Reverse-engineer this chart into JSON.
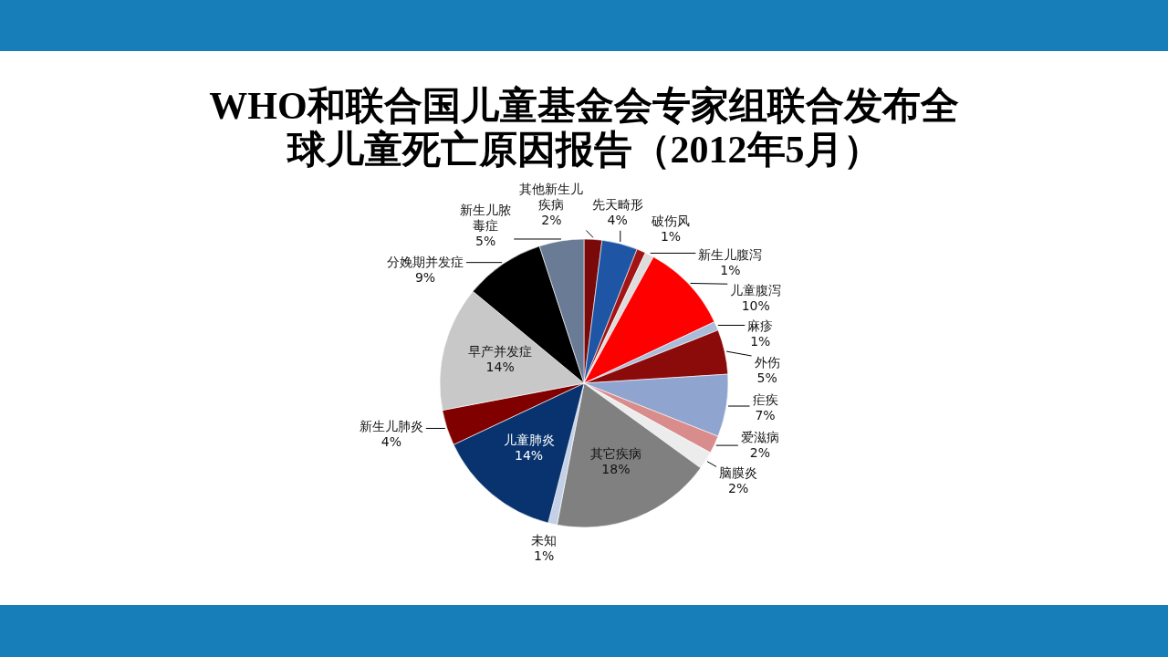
{
  "chart_data": {
    "type": "pie",
    "title": "WHO和联合国儿童基金会专家组联合发布全球儿童死亡原因报告（2012年5月）",
    "categories": [
      "其他新生儿疾病",
      "先天畸形",
      "破伤风",
      "新生儿腹泻",
      "儿童腹泻",
      "麻疹",
      "外伤",
      "疟疾",
      "爱滋病",
      "脑膜炎",
      "其它疾病",
      "未知",
      "儿童肺炎",
      "新生儿肺炎",
      "早产并发症",
      "分娩期并发症",
      "新生儿脓毒症"
    ],
    "values": [
      2,
      4,
      1,
      1,
      10,
      1,
      5,
      7,
      2,
      2,
      18,
      1,
      14,
      4,
      14,
      9,
      5
    ],
    "colors": [
      "#7a0a0a",
      "#1f55a5",
      "#a31515",
      "#dcdcdc",
      "#ff0000",
      "#a9bddb",
      "#8b0a0a",
      "#8fa5cf",
      "#d98c8c",
      "#ececec",
      "#808080",
      "#c3d0e6",
      "#08336f",
      "#800000",
      "#c8c8c8",
      "#000000",
      "#6a7b96"
    ],
    "value_labels": [
      "2%",
      "4%",
      "1%",
      "1%",
      "10%",
      "1%",
      "5%",
      "7%",
      "2%",
      "2%",
      "18%",
      "1%",
      "14%",
      "4%",
      "14%",
      "9%",
      "5%"
    ]
  }
}
